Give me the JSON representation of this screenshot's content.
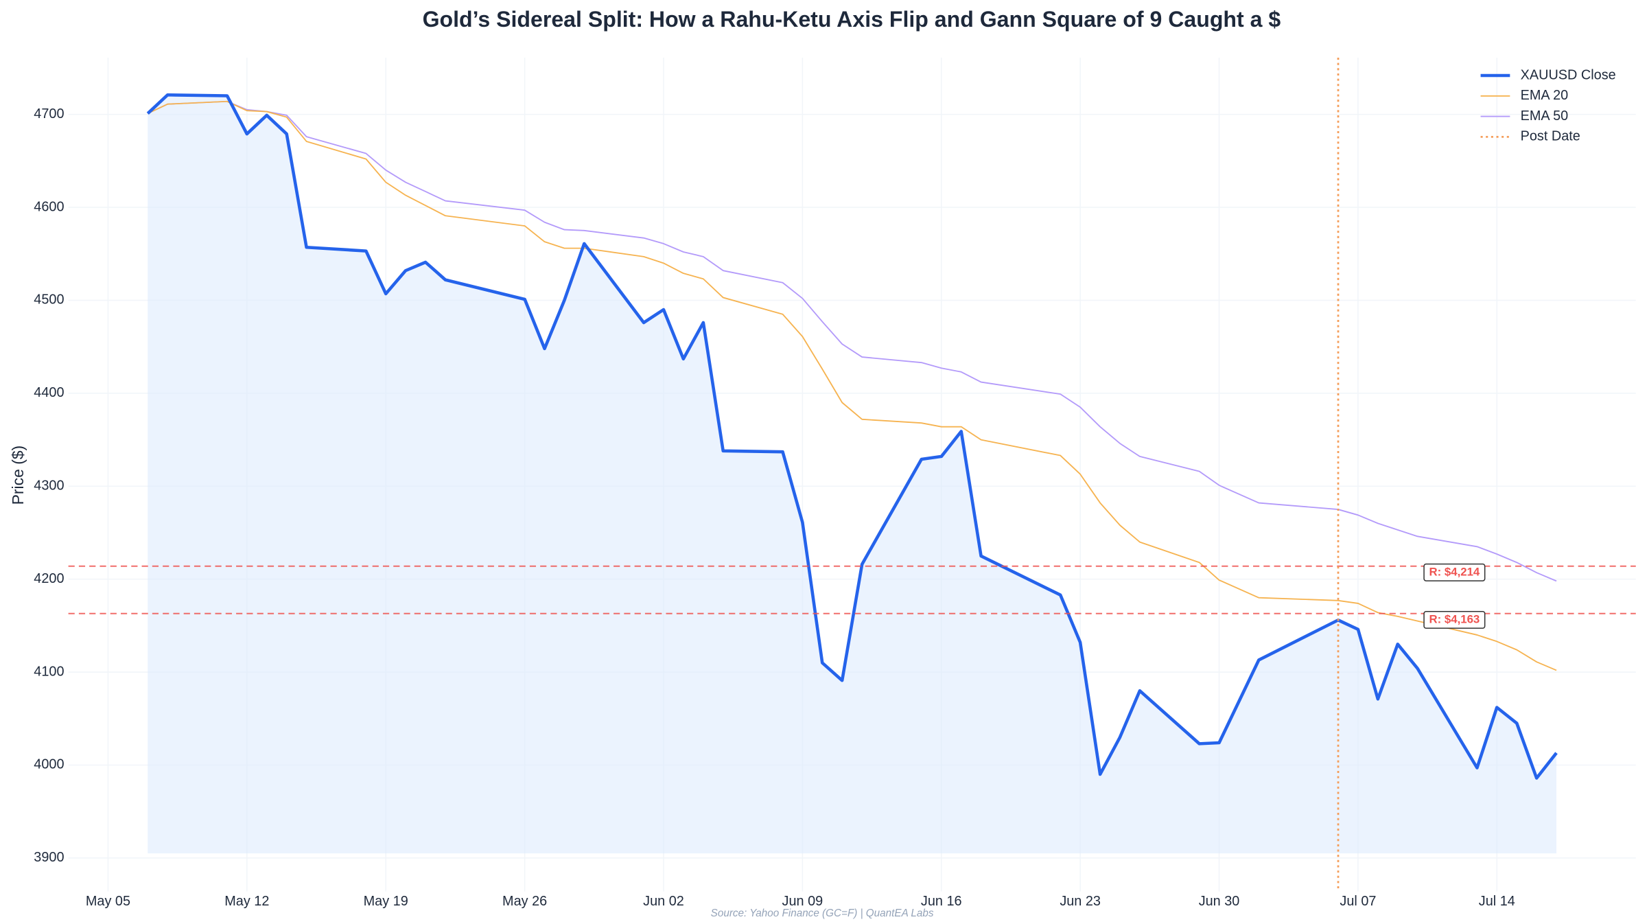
{
  "chart_data": {
    "type": "line",
    "title": "Gold’s Sidereal Split: How a Rahu-Ketu Axis Flip and Gann Square of 9 Caught a $",
    "y_label": "Price ($)",
    "source": "Source: Yahoo Finance (GC=F) | QuantEA Labs",
    "x": [
      "May 07",
      "May 08",
      "May 11",
      "May 12",
      "May 13",
      "May 14",
      "May 15",
      "May 18",
      "May 19",
      "May 20",
      "May 21",
      "May 22",
      "May 26",
      "May 27",
      "May 28",
      "May 29",
      "Jun 01",
      "Jun 02",
      "Jun 03",
      "Jun 04",
      "Jun 05",
      "Jun 08",
      "Jun 09",
      "Jun 10",
      "Jun 11",
      "Jun 12",
      "Jun 15",
      "Jun 16",
      "Jun 17",
      "Jun 18",
      "Jun 22",
      "Jun 23",
      "Jun 24",
      "Jun 25",
      "Jun 26",
      "Jun 29",
      "Jun 30",
      "Jul 02",
      "Jul 06",
      "Jul 07",
      "Jul 08",
      "Jul 09",
      "Jul 10",
      "Jul 13",
      "Jul 14",
      "Jul 15",
      "Jul 16",
      "Jul 17"
    ],
    "series": [
      {
        "name": "XAUUSD Close",
        "color": "#2563eb",
        "width": 3,
        "fill": "#dbeafe",
        "values": [
          4701,
          4721,
          4720,
          4679,
          4699,
          4679,
          4557,
          4553,
          4507,
          4532,
          4541,
          4522,
          4501,
          4448,
          4500,
          4561,
          4476,
          4490,
          4437,
          4476,
          4338,
          4337,
          4261,
          4110,
          4091,
          4216,
          4329,
          4332,
          4359,
          4225,
          4183,
          4132,
          3990,
          4030,
          4080,
          4023,
          4024,
          4113,
          4156,
          4146,
          4071,
          4130,
          4104,
          3997,
          4062,
          4045,
          3986,
          4013
        ]
      },
      {
        "name": "EMA 20",
        "color": "#f6b350",
        "width": 1.2,
        "values": [
          4701,
          4711,
          4714,
          4704,
          4703,
          4697,
          4671,
          4652,
          4627,
          4613,
          4602,
          4591,
          4580,
          4563,
          4556,
          4556,
          4547,
          4540,
          4529,
          4523,
          4503,
          4485,
          4461,
          4426,
          4390,
          4372,
          4368,
          4364,
          4364,
          4350,
          4333,
          4313,
          4282,
          4258,
          4240,
          4218,
          4199,
          4180,
          4177,
          4174,
          4164,
          4160,
          4155,
          4140,
          4133,
          4124,
          4111,
          4102
        ]
      },
      {
        "name": "EMA 50",
        "color": "#b39afa",
        "width": 1.2,
        "values": [
          4701,
          4711,
          4714,
          4705,
          4703,
          4699,
          4676,
          4658,
          4640,
          4627,
          4617,
          4607,
          4597,
          4584,
          4576,
          4575,
          4567,
          4561,
          4552,
          4547,
          4532,
          4519,
          4502,
          4477,
          4453,
          4439,
          4433,
          4427,
          4423,
          4412,
          4399,
          4385,
          4364,
          4346,
          4332,
          4316,
          4301,
          4282,
          4275,
          4269,
          4260,
          4253,
          4246,
          4235,
          4227,
          4218,
          4207,
          4198
        ]
      }
    ],
    "area_base": 3905,
    "vline": {
      "name": "Post Date",
      "x": "Jul 06",
      "color": "#f59e5b"
    },
    "hlines": {
      "color": "#ef5350",
      "values": [
        4214,
        4163
      ],
      "value_labels": [
        "R: $4,214",
        "R: $4,163"
      ]
    },
    "xlim": [
      "May 03",
      "Jul 21"
    ],
    "xticks": [
      "May 05",
      "May 12",
      "May 19",
      "May 26",
      "Jun 02",
      "Jun 09",
      "Jun 16",
      "Jun 23",
      "Jun 30",
      "Jul 07",
      "Jul 14"
    ],
    "ylim": [
      3864,
      4761
    ],
    "yticks": [
      3900,
      4000,
      4100,
      4200,
      4300,
      4400,
      4500,
      4600,
      4700
    ],
    "grid": true,
    "legend": "upper right"
  }
}
